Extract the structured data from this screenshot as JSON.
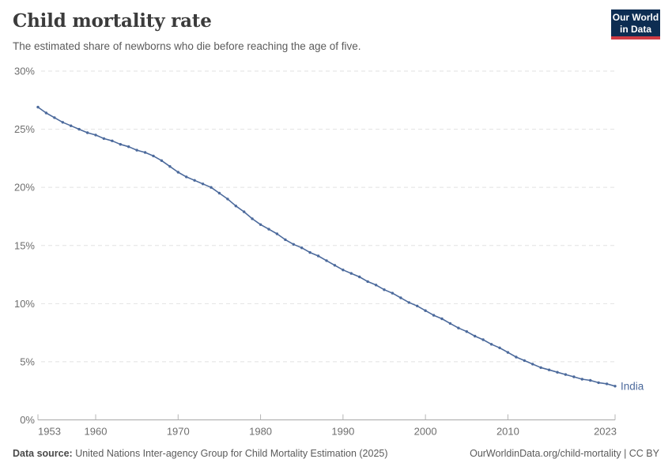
{
  "header": {
    "title": "Child mortality rate",
    "subtitle": "The estimated share of newborns who die before reaching the age of five.",
    "logo": {
      "line1": "Our World",
      "line2": "in Data",
      "bg_color": "#0d2d52",
      "accent_color": "#cf3b44",
      "text_color": "#ffffff"
    }
  },
  "chart_data": {
    "type": "line",
    "title": "Child mortality rate",
    "xlabel": "",
    "ylabel": "",
    "ylim": [
      0,
      30
    ],
    "y_ticks": [
      0,
      5,
      10,
      15,
      20,
      25,
      30
    ],
    "y_tick_suffix": "%",
    "x_ticks": [
      1953,
      1960,
      1970,
      1980,
      1990,
      2000,
      2010,
      2023
    ],
    "grid": "horizontal-dashed",
    "legend_position": "end-of-line",
    "x": [
      1953,
      1954,
      1955,
      1956,
      1957,
      1958,
      1959,
      1960,
      1961,
      1962,
      1963,
      1964,
      1965,
      1966,
      1967,
      1968,
      1969,
      1970,
      1971,
      1972,
      1973,
      1974,
      1975,
      1976,
      1977,
      1978,
      1979,
      1980,
      1981,
      1982,
      1983,
      1984,
      1985,
      1986,
      1987,
      1988,
      1989,
      1990,
      1991,
      1992,
      1993,
      1994,
      1995,
      1996,
      1997,
      1998,
      1999,
      2000,
      2001,
      2002,
      2003,
      2004,
      2005,
      2006,
      2007,
      2008,
      2009,
      2010,
      2011,
      2012,
      2013,
      2014,
      2015,
      2016,
      2017,
      2018,
      2019,
      2020,
      2021,
      2022,
      2023
    ],
    "series": [
      {
        "name": "India",
        "color": "#4c6a9c",
        "values": [
          26.9,
          26.4,
          26.0,
          25.6,
          25.3,
          25.0,
          24.7,
          24.5,
          24.2,
          24.0,
          23.7,
          23.5,
          23.2,
          23.0,
          22.7,
          22.3,
          21.8,
          21.3,
          20.9,
          20.6,
          20.3,
          20.0,
          19.5,
          19.0,
          18.4,
          17.9,
          17.3,
          16.8,
          16.4,
          16.0,
          15.5,
          15.1,
          14.8,
          14.4,
          14.1,
          13.7,
          13.3,
          12.9,
          12.6,
          12.3,
          11.9,
          11.6,
          11.2,
          10.9,
          10.5,
          10.1,
          9.8,
          9.4,
          9.0,
          8.7,
          8.3,
          7.9,
          7.6,
          7.2,
          6.9,
          6.5,
          6.2,
          5.8,
          5.4,
          5.1,
          4.8,
          4.5,
          4.3,
          4.1,
          3.9,
          3.7,
          3.5,
          3.4,
          3.2,
          3.1,
          2.9
        ]
      }
    ]
  },
  "footer": {
    "datasource_label": "Data source:",
    "datasource_text": " United Nations Inter-agency Group for Child Mortality Estimation (2025)",
    "attribution": "OurWorldinData.org/child-mortality | CC BY"
  },
  "colors": {
    "line": "#4c6a9c",
    "gridline": "#e2e2e2",
    "axis": "#a8a8a8",
    "tick_label": "#6e6e6e",
    "title": "#3b3b3b",
    "subtitle": "#5b5b5b"
  }
}
